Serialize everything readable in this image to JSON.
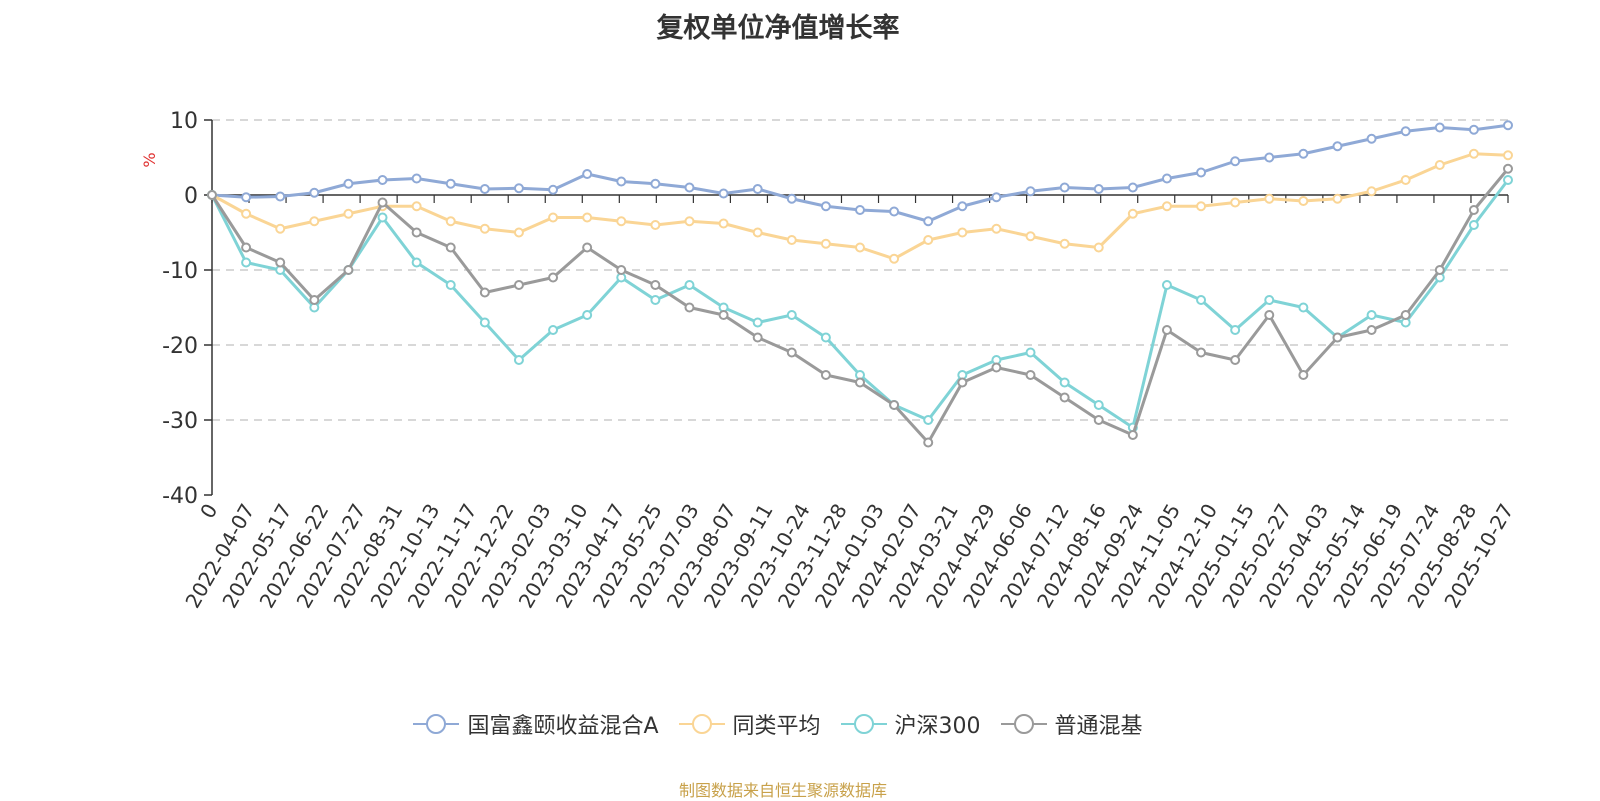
{
  "title": "复权单位净值增长率",
  "source": "制图数据来自恒生聚源数据库",
  "source_color": "#c8a14a",
  "chart_data": {
    "type": "line",
    "title": "复权单位净值增长率",
    "ylabel": "%",
    "ylim": [
      -40,
      10
    ],
    "yticks": [
      10,
      0,
      -10,
      -20,
      -30,
      -40
    ],
    "grid": true,
    "legend_position": "bottom",
    "x_tick_labels": [
      "0",
      "2022-04-07",
      "2022-05-17",
      "2022-06-22",
      "2022-07-27",
      "2022-08-31",
      "2022-10-13",
      "2022-11-17",
      "2022-12-22",
      "2023-02-03",
      "2023-03-10",
      "2023-04-17",
      "2023-05-25",
      "2023-07-03",
      "2023-08-07",
      "2023-09-11",
      "2023-10-24",
      "2023-11-28",
      "2024-01-03",
      "2024-02-07",
      "2024-03-21",
      "2024-04-29",
      "2024-06-06",
      "2024-07-12",
      "2024-08-16",
      "2024-09-24",
      "2024-11-05",
      "2024-12-10",
      "2025-01-15",
      "2025-02-27",
      "2025-04-03",
      "2025-05-14",
      "2025-06-19",
      "2025-07-24",
      "2025-08-28",
      "2025-10-27"
    ],
    "series": [
      {
        "name": "国富鑫颐收益混合A",
        "color": "#8fa9d6",
        "values": [
          0,
          -0.3,
          -0.2,
          0.3,
          1.5,
          2.0,
          2.2,
          1.5,
          0.8,
          0.9,
          0.7,
          2.8,
          1.8,
          1.5,
          1.0,
          0.2,
          0.8,
          -0.5,
          -1.5,
          -2.0,
          -2.2,
          -3.5,
          -1.5,
          -0.3,
          0.5,
          1.0,
          0.8,
          1.0,
          2.2,
          3.0,
          4.5,
          5.0,
          5.5,
          6.5,
          7.5,
          8.5,
          9.0,
          8.7,
          9.3
        ]
      },
      {
        "name": "同类平均",
        "color": "#fad595",
        "values": [
          0,
          -2.5,
          -4.5,
          -3.5,
          -2.5,
          -1.5,
          -1.5,
          -3.5,
          -4.5,
          -5.0,
          -3.0,
          -3.0,
          -3.5,
          -4.0,
          -3.5,
          -3.8,
          -5.0,
          -6.0,
          -6.5,
          -7.0,
          -8.5,
          -6.0,
          -5.0,
          -4.5,
          -5.5,
          -6.5,
          -7.0,
          -2.5,
          -1.5,
          -1.5,
          -1.0,
          -0.5,
          -0.8,
          -0.5,
          0.5,
          2.0,
          4.0,
          5.5,
          5.3
        ]
      },
      {
        "name": "沪深300",
        "color": "#7fd3d6",
        "values": [
          0,
          -9,
          -10,
          -15,
          -10,
          -3,
          -9,
          -12,
          -17,
          -22,
          -18,
          -16,
          -11,
          -14,
          -12,
          -15,
          -17,
          -16,
          -19,
          -24,
          -28,
          -30,
          -24,
          -22,
          -21,
          -25,
          -28,
          -31,
          -12,
          -14,
          -18,
          -14,
          -15,
          -19,
          -16,
          -17,
          -11,
          -4,
          2
        ]
      },
      {
        "name": "普通混基",
        "color": "#9a9a9a",
        "values": [
          0,
          -7,
          -9,
          -14,
          -10,
          -1,
          -5,
          -7,
          -13,
          -12,
          -11,
          -7,
          -10,
          -12,
          -15,
          -16,
          -19,
          -21,
          -24,
          -25,
          -28,
          -33,
          -25,
          -23,
          -24,
          -27,
          -30,
          -32,
          -18,
          -21,
          -22,
          -16,
          -24,
          -19,
          -18,
          -16,
          -10,
          -2,
          3.5
        ]
      }
    ]
  }
}
